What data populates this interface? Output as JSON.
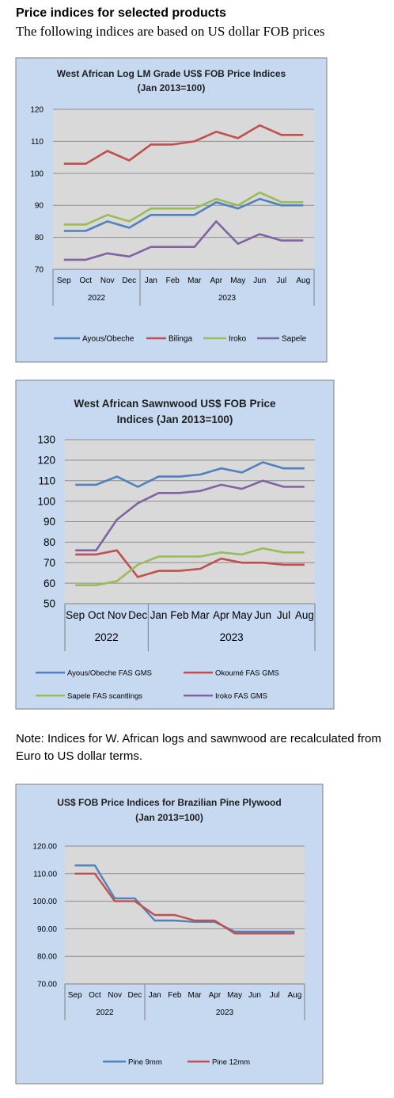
{
  "page": {
    "heading": "Price indices for selected products",
    "subheading": "The following indices are based on US dollar FOB prices",
    "note": "Note: Indices for W. African logs and sawnwood are recalculated from Euro to US dollar terms."
  },
  "colors": {
    "panel_bg": "#c6d9f1",
    "plot_bg": "#d9d9d9",
    "blue": "#4f81bd",
    "red": "#c0504d",
    "green": "#9bbb59",
    "purple": "#8064a2"
  },
  "chart_data": [
    {
      "type": "line",
      "title_lines": [
        "West African Log LM Grade US$ FOB Price Indices",
        "(Jan 2013=100)"
      ],
      "categories": [
        "Sep",
        "Oct",
        "Nov",
        "Dec",
        "Jan",
        "Feb",
        "Mar",
        "Apr",
        "May",
        "Jun",
        "Jul",
        "Aug"
      ],
      "groups": [
        {
          "label": "2022",
          "count": 4
        },
        {
          "label": "2023",
          "count": 8
        }
      ],
      "ylim": [
        70,
        120
      ],
      "yticks": [
        "70",
        "80",
        "90",
        "100",
        "110",
        "120"
      ],
      "series": [
        {
          "name": "Ayous/Obeche",
          "color": "#4f81bd",
          "values": [
            82,
            82,
            85,
            83,
            87,
            87,
            87,
            91,
            89,
            92,
            90,
            90
          ]
        },
        {
          "name": "Bilinga",
          "color": "#c0504d",
          "values": [
            103,
            103,
            107,
            104,
            109,
            109,
            110,
            113,
            111,
            115,
            112,
            112
          ]
        },
        {
          "name": "Iroko",
          "color": "#9bbb59",
          "values": [
            84,
            84,
            87,
            85,
            89,
            89,
            89,
            92,
            90,
            94,
            91,
            91
          ]
        },
        {
          "name": "Sapele",
          "color": "#8064a2",
          "values": [
            73,
            73,
            75,
            74,
            77,
            77,
            77,
            85,
            78,
            81,
            79,
            79
          ]
        }
      ]
    },
    {
      "type": "line",
      "title_lines": [
        "West African Sawnwood US$ FOB Price",
        "Indices (Jan 2013=100)"
      ],
      "categories": [
        "Sep",
        "Oct",
        "Nov",
        "Dec",
        "Jan",
        "Feb",
        "Mar",
        "Apr",
        "May",
        "Jun",
        "Jul",
        "Aug"
      ],
      "groups": [
        {
          "label": "2022",
          "count": 4
        },
        {
          "label": "2023",
          "count": 8
        }
      ],
      "ylim": [
        50,
        130
      ],
      "yticks": [
        "50",
        "60",
        "70",
        "80",
        "90",
        "100",
        "110",
        "120",
        "130"
      ],
      "series": [
        {
          "name": "Ayous/Obeche  FAS GMS",
          "color": "#4f81bd",
          "values": [
            108,
            108,
            112,
            107,
            112,
            112,
            113,
            116,
            114,
            119,
            116,
            116
          ]
        },
        {
          "name": "Okoumé  FAS GMS",
          "color": "#c0504d",
          "values": [
            74,
            74,
            76,
            63,
            66,
            66,
            67,
            72,
            70,
            70,
            69,
            69
          ]
        },
        {
          "name": "Sapele FAS scantlings",
          "color": "#9bbb59",
          "values": [
            59,
            59,
            61,
            69,
            73,
            73,
            73,
            75,
            74,
            77,
            75,
            75
          ]
        },
        {
          "name": "Iroko FAS GMS",
          "color": "#8064a2",
          "values": [
            76,
            76,
            91,
            99,
            104,
            104,
            105,
            108,
            106,
            110,
            107,
            107
          ]
        }
      ]
    },
    {
      "type": "line",
      "title_lines": [
        "US$ FOB Price Indices for Brazilian Pine Plywood",
        "(Jan 2013=100)"
      ],
      "categories": [
        "Sep",
        "Oct",
        "Nov",
        "Dec",
        "Jan",
        "Feb",
        "Mar",
        "Apr",
        "May",
        "Jun",
        "Jul",
        "Aug"
      ],
      "groups": [
        {
          "label": "2022",
          "count": 4
        },
        {
          "label": "2023",
          "count": 8
        }
      ],
      "ylim": [
        70,
        120
      ],
      "yticks": [
        "70.00",
        "80.00",
        "90.00",
        "100.00",
        "110.00",
        "120.00"
      ],
      "series": [
        {
          "name": "Pine 9mm",
          "color": "#4f81bd",
          "values": [
            113,
            113,
            101,
            101,
            93,
            93,
            92.5,
            92.5,
            89,
            89,
            89,
            89
          ]
        },
        {
          "name": "Pine 12mm",
          "color": "#c0504d",
          "values": [
            110,
            110,
            100,
            100,
            95,
            95,
            93,
            93,
            88.3,
            88.3,
            88.3,
            88.3
          ]
        }
      ]
    }
  ]
}
